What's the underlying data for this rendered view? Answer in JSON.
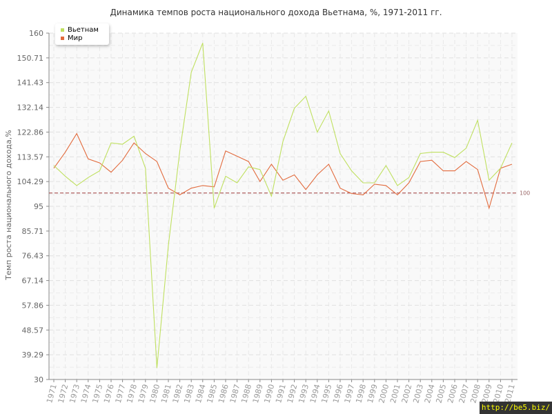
{
  "chart_data": {
    "type": "line",
    "title": "Динамика темпов роста национального дохода Вьетнама, %, 1971-2011 гг.",
    "ylabel": "Темп роста национального дохода,%",
    "xlabel": "",
    "ylim": [
      30,
      160
    ],
    "yticks": [
      "160",
      "150.71",
      "141.43",
      "132.14",
      "122.86",
      "113.57",
      "104.29",
      "95",
      "85.71",
      "76.43",
      "67.14",
      "57.86",
      "48.57",
      "39.29",
      "30"
    ],
    "categories": [
      "1971",
      "1972",
      "1973",
      "1974",
      "1975",
      "1976",
      "1977",
      "1978",
      "1979",
      "1980",
      "1981",
      "1982",
      "1983",
      "1984",
      "1985",
      "1986",
      "1987",
      "1988",
      "1989",
      "1990",
      "1991",
      "1992",
      "1993",
      "1994",
      "1995",
      "1996",
      "1997",
      "1998",
      "1999",
      "2000",
      "2001",
      "2002",
      "2003",
      "2004",
      "2005",
      "2006",
      "2007",
      "2008",
      "2009",
      "2010",
      "2011"
    ],
    "series": [
      {
        "name": "Вьетнам",
        "color": "#bfe05f",
        "values": [
          110.3,
          106.3,
          102.8,
          105.8,
          108.3,
          118.8,
          118.3,
          121.3,
          109.3,
          34.3,
          80.3,
          115.8,
          145.3,
          156.3,
          94.3,
          106.3,
          103.8,
          109.8,
          108.8,
          98.8,
          119.3,
          131.8,
          136.3,
          122.8,
          130.8,
          114.8,
          108.3,
          103.8,
          103.8,
          110.3,
          102.8,
          105.8,
          114.8,
          115.3,
          115.3,
          113.3,
          116.8,
          127.3,
          104.8,
          109.3,
          118.8
        ]
      },
      {
        "name": "Мир",
        "color": "#e26a3c",
        "values": [
          109.3,
          115.3,
          122.3,
          112.8,
          111.3,
          107.8,
          112.3,
          118.8,
          114.8,
          111.8,
          101.8,
          99.3,
          101.8,
          102.8,
          102.3,
          115.8,
          113.8,
          111.8,
          104.3,
          110.8,
          104.8,
          106.8,
          101.3,
          106.8,
          110.8,
          101.8,
          99.8,
          99.3,
          103.3,
          102.8,
          99.3,
          103.8,
          111.8,
          112.3,
          108.3,
          108.3,
          111.8,
          108.8,
          94.3,
          109.3,
          110.8
        ]
      }
    ],
    "reference_line": {
      "value": 100,
      "label": "100",
      "color": "#a03a3a"
    },
    "grid": true,
    "legend": "top-left"
  },
  "watermark": "http://be5.biz/"
}
